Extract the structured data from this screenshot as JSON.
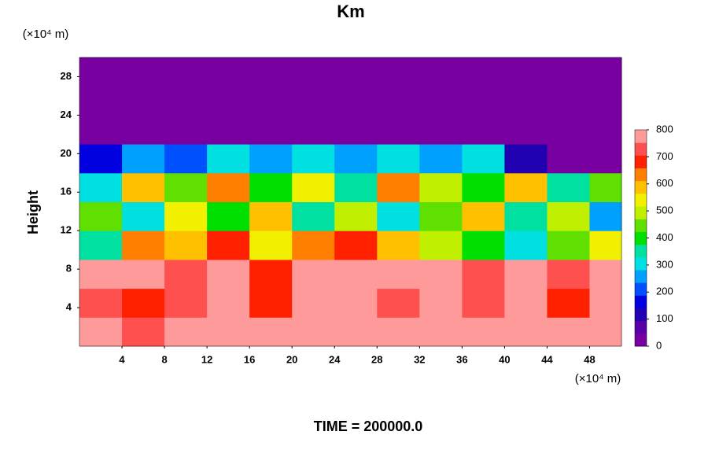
{
  "chart_data": {
    "type": "heatmap",
    "title": "Km",
    "ylabel": "Height",
    "x_unit": "(×10⁴ m)",
    "y_unit": "(×10⁴ m)",
    "footer": "TIME = 200000.0",
    "xlim": [
      0,
      51
    ],
    "ylim": [
      0,
      30
    ],
    "xticks": [
      4,
      8,
      12,
      16,
      20,
      24,
      28,
      32,
      36,
      40,
      44,
      48
    ],
    "yticks": [
      4,
      8,
      12,
      16,
      20,
      24,
      28
    ],
    "x_edges": [
      0,
      4,
      8,
      12,
      16,
      20,
      24,
      28,
      32,
      36,
      40,
      44,
      48,
      51
    ],
    "y_edges": [
      0,
      3,
      6,
      9,
      12,
      15,
      18,
      21,
      24,
      27,
      30
    ],
    "z": [
      [
        780,
        750,
        800,
        790,
        800,
        800,
        800,
        800,
        800,
        800,
        800,
        790,
        800
      ],
      [
        760,
        720,
        740,
        800,
        720,
        780,
        800,
        770,
        800,
        760,
        780,
        720,
        800
      ],
      [
        800,
        800,
        760,
        800,
        720,
        800,
        800,
        800,
        780,
        740,
        800,
        760,
        800
      ],
      [
        350,
        650,
        600,
        700,
        550,
        650,
        700,
        600,
        500,
        400,
        300,
        450,
        550
      ],
      [
        450,
        300,
        550,
        400,
        600,
        350,
        500,
        300,
        450,
        600,
        350,
        500,
        250
      ],
      [
        300,
        600,
        450,
        650,
        400,
        550,
        350,
        650,
        500,
        400,
        600,
        350,
        450
      ],
      [
        150,
        250,
        200,
        300,
        250,
        300,
        250,
        300,
        250,
        300,
        100,
        0,
        0
      ],
      [
        0,
        0,
        0,
        0,
        0,
        0,
        0,
        0,
        0,
        0,
        0,
        0,
        0
      ],
      [
        0,
        0,
        0,
        0,
        0,
        0,
        0,
        0,
        0,
        0,
        0,
        0,
        0
      ],
      [
        0,
        0,
        0,
        0,
        0,
        0,
        0,
        0,
        0,
        0,
        0,
        0,
        0
      ]
    ],
    "clim": [
      0,
      800
    ],
    "cticks": [
      0,
      100,
      200,
      300,
      400,
      500,
      600,
      700,
      800
    ],
    "colorscale": [
      "#7800a0",
      "#5a00a8",
      "#2000b0",
      "#0000e0",
      "#0050ff",
      "#00a0ff",
      "#00e0e0",
      "#00e0a0",
      "#00e000",
      "#60e000",
      "#c0f000",
      "#f0f000",
      "#ffc000",
      "#ff8000",
      "#ff2000",
      "#ff5050",
      "#ff9a9a"
    ]
  }
}
